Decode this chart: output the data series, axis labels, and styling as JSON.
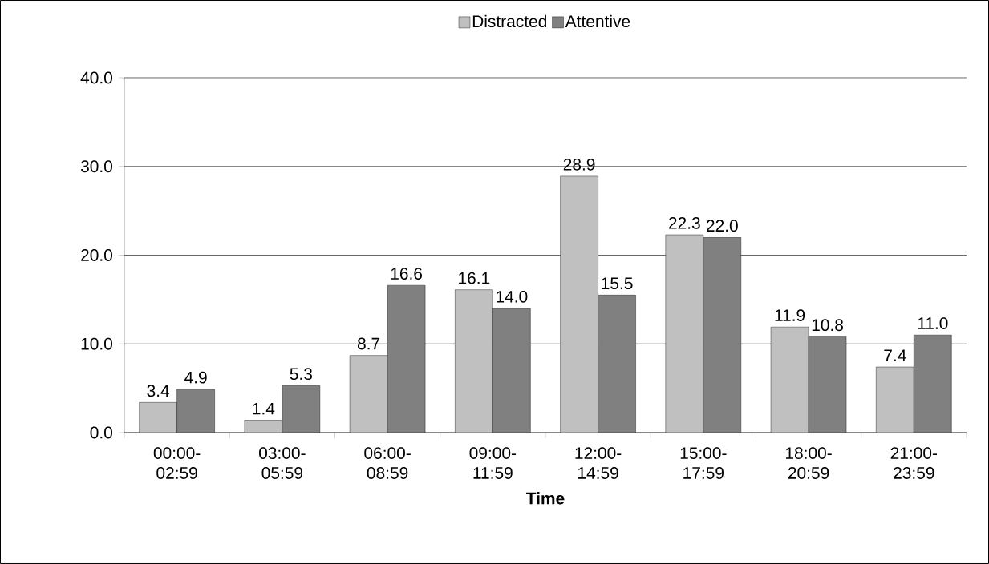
{
  "chart_data": {
    "type": "bar",
    "xlabel": "Time",
    "categories": [
      "00:00-02:59",
      "03:00-05:59",
      "06:00-08:59",
      "09:00-11:59",
      "12:00-14:59",
      "15:00-17:59",
      "18:00-20:59",
      "21:00-23:59"
    ],
    "series": [
      {
        "name": "Distracted",
        "color": "#c0c0c0",
        "values": [
          3.4,
          1.4,
          8.7,
          16.1,
          28.9,
          22.3,
          11.9,
          7.4
        ],
        "value_labels": [
          "3.4",
          "1.4",
          "8.7",
          "16.1",
          "28.9",
          "22.3",
          "11.9",
          "7.4"
        ]
      },
      {
        "name": "Attentive",
        "color": "#808080",
        "values": [
          4.9,
          5.3,
          16.6,
          14.0,
          15.5,
          22.0,
          10.8,
          11.0
        ],
        "value_labels": [
          "4.9",
          "5.3",
          "16.6",
          "14.0",
          "15.5",
          "22.0",
          "10.8",
          "11.0"
        ]
      }
    ],
    "ylim": [
      0,
      40
    ],
    "yticks": [
      {
        "value": 0,
        "label": "0.0"
      },
      {
        "value": 10,
        "label": "10.0"
      },
      {
        "value": 20,
        "label": "20.0"
      },
      {
        "value": 30,
        "label": "30.0"
      },
      {
        "value": 40,
        "label": "40.0"
      }
    ],
    "grid": "y",
    "legend": "top"
  }
}
